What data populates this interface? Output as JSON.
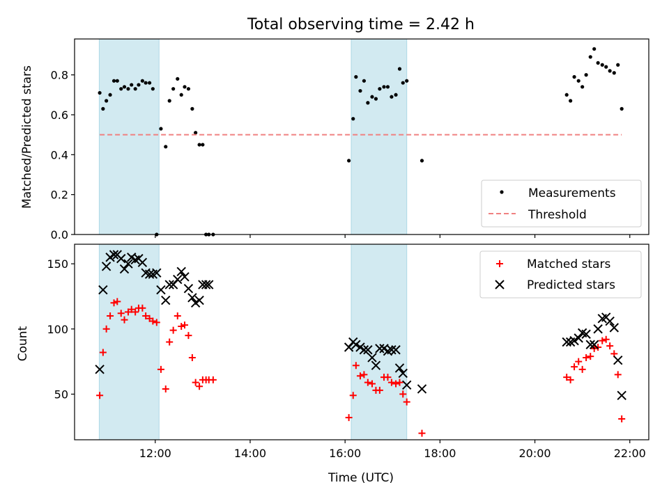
{
  "figure": {
    "title": "Total observing time = 2.42 h"
  },
  "chart_data": [
    {
      "type": "scatter",
      "ylabel": "Matched/Predicted stars",
      "xlabel": "",
      "xlim": [
        10.3,
        22.4
      ],
      "ylim": [
        0,
        0.98
      ],
      "yticks": [
        0.0,
        0.2,
        0.4,
        0.6,
        0.8
      ],
      "ytick_labels": [
        "0.0",
        "0.2",
        "0.4",
        "0.6",
        "0.8"
      ],
      "xticks": [
        12,
        14,
        16,
        18,
        20,
        22
      ],
      "grid": false,
      "legend_position": "lower-right",
      "shaded_intervals": [
        [
          10.82,
          12.08
        ],
        [
          16.13,
          17.3
        ]
      ],
      "series": [
        {
          "name": "Measurements",
          "marker": "dot",
          "color": "#000000",
          "x": [
            10.83,
            10.9,
            10.97,
            11.05,
            11.13,
            11.2,
            11.28,
            11.35,
            11.43,
            11.5,
            11.58,
            11.65,
            11.73,
            11.8,
            11.88,
            11.95,
            12.03,
            12.12,
            12.22,
            12.3,
            12.38,
            12.47,
            12.55,
            12.62,
            12.7,
            12.78,
            12.85,
            12.93,
            13.0,
            13.07,
            13.13,
            13.22,
            16.08,
            16.17,
            16.23,
            16.32,
            16.4,
            16.48,
            16.57,
            16.65,
            16.73,
            16.82,
            16.9,
            16.98,
            17.07,
            17.15,
            17.22,
            17.3,
            17.62,
            20.67,
            20.75,
            20.83,
            20.92,
            21.0,
            21.08,
            21.17,
            21.25,
            21.33,
            21.42,
            21.5,
            21.58,
            21.67,
            21.75,
            21.83
          ],
          "y": [
            0.71,
            0.63,
            0.67,
            0.7,
            0.77,
            0.77,
            0.73,
            0.74,
            0.73,
            0.75,
            0.73,
            0.75,
            0.77,
            0.76,
            0.76,
            0.73,
            0.0,
            0.53,
            0.44,
            0.67,
            0.73,
            0.78,
            0.7,
            0.74,
            0.73,
            0.63,
            0.51,
            0.45,
            0.45,
            0.0,
            0.0,
            0.0,
            0.37,
            0.58,
            0.79,
            0.72,
            0.77,
            0.66,
            0.69,
            0.68,
            0.73,
            0.74,
            0.74,
            0.69,
            0.7,
            0.83,
            0.76,
            0.77,
            0.37,
            0.7,
            0.67,
            0.79,
            0.77,
            0.74,
            0.8,
            0.89,
            0.93,
            0.86,
            0.85,
            0.84,
            0.82,
            0.81,
            0.85,
            0.63
          ]
        },
        {
          "name": "Threshold",
          "line": "dashed",
          "color": "#f08080",
          "x": [
            10.83,
            21.83
          ],
          "y": [
            0.5,
            0.5
          ]
        }
      ]
    },
    {
      "type": "scatter",
      "ylabel": "Count",
      "xlabel": "Time (UTC)",
      "xlim": [
        10.3,
        22.4
      ],
      "ylim": [
        15,
        165
      ],
      "yticks": [
        50,
        100,
        150
      ],
      "ytick_labels": [
        "50",
        "100",
        "150"
      ],
      "xticks": [
        12,
        14,
        16,
        18,
        20,
        22
      ],
      "xtick_labels": [
        "12:00",
        "14:00",
        "16:00",
        "18:00",
        "20:00",
        "22:00"
      ],
      "grid": false,
      "legend_position": "upper-right",
      "shaded_intervals": [
        [
          10.82,
          12.08
        ],
        [
          16.13,
          17.3
        ]
      ],
      "series": [
        {
          "name": "Matched stars",
          "marker": "plus",
          "color": "#ff0000",
          "x": [
            10.83,
            10.9,
            10.97,
            11.05,
            11.13,
            11.2,
            11.28,
            11.35,
            11.43,
            11.5,
            11.58,
            11.65,
            11.73,
            11.8,
            11.88,
            11.95,
            12.03,
            12.12,
            12.22,
            12.3,
            12.38,
            12.47,
            12.55,
            12.62,
            12.7,
            12.78,
            12.85,
            12.93,
            13.0,
            13.07,
            13.13,
            13.22,
            16.08,
            16.17,
            16.23,
            16.32,
            16.4,
            16.48,
            16.57,
            16.65,
            16.73,
            16.82,
            16.9,
            16.98,
            17.07,
            17.15,
            17.22,
            17.3,
            17.62,
            20.67,
            20.75,
            20.83,
            20.92,
            21.0,
            21.08,
            21.17,
            21.25,
            21.33,
            21.42,
            21.5,
            21.58,
            21.67,
            21.75,
            21.83
          ],
          "y": [
            49,
            82,
            100,
            110,
            120,
            121,
            112,
            107,
            113,
            115,
            113,
            116,
            116,
            110,
            108,
            106,
            105,
            69,
            54,
            90,
            99,
            110,
            102,
            103,
            95,
            78,
            59,
            56,
            61,
            61,
            61,
            61,
            32,
            49,
            72,
            64,
            65,
            59,
            58,
            53,
            53,
            63,
            63,
            59,
            58,
            59,
            50,
            44,
            20,
            63,
            61,
            71,
            75,
            69,
            78,
            79,
            85,
            86,
            91,
            92,
            87,
            81,
            65,
            31
          ]
        },
        {
          "name": "Predicted stars",
          "marker": "x",
          "color": "#000000",
          "x": [
            10.83,
            10.9,
            10.97,
            11.05,
            11.13,
            11.2,
            11.28,
            11.35,
            11.43,
            11.5,
            11.58,
            11.65,
            11.73,
            11.8,
            11.88,
            11.95,
            12.03,
            12.12,
            12.22,
            12.3,
            12.38,
            12.47,
            12.55,
            12.62,
            12.7,
            12.78,
            12.85,
            12.93,
            13.0,
            13.07,
            13.13,
            16.08,
            16.17,
            16.23,
            16.32,
            16.4,
            16.48,
            16.57,
            16.65,
            16.73,
            16.82,
            16.9,
            16.98,
            17.07,
            17.15,
            17.22,
            17.3,
            17.62,
            20.67,
            20.75,
            20.83,
            20.92,
            21.0,
            21.08,
            21.17,
            21.25,
            21.33,
            21.42,
            21.5,
            21.58,
            21.67,
            21.75,
            21.83
          ],
          "y": [
            69,
            130,
            148,
            155,
            157,
            157,
            154,
            146,
            150,
            155,
            153,
            154,
            151,
            143,
            142,
            142,
            143,
            130,
            122,
            134,
            134,
            138,
            144,
            140,
            131,
            124,
            120,
            122,
            134,
            134,
            134,
            86,
            90,
            88,
            86,
            84,
            84,
            78,
            72,
            85,
            85,
            83,
            84,
            84,
            70,
            66,
            57,
            54,
            90,
            90,
            91,
            93,
            97,
            96,
            88,
            88,
            100,
            108,
            109,
            106,
            101,
            76,
            49
          ]
        }
      ]
    }
  ]
}
